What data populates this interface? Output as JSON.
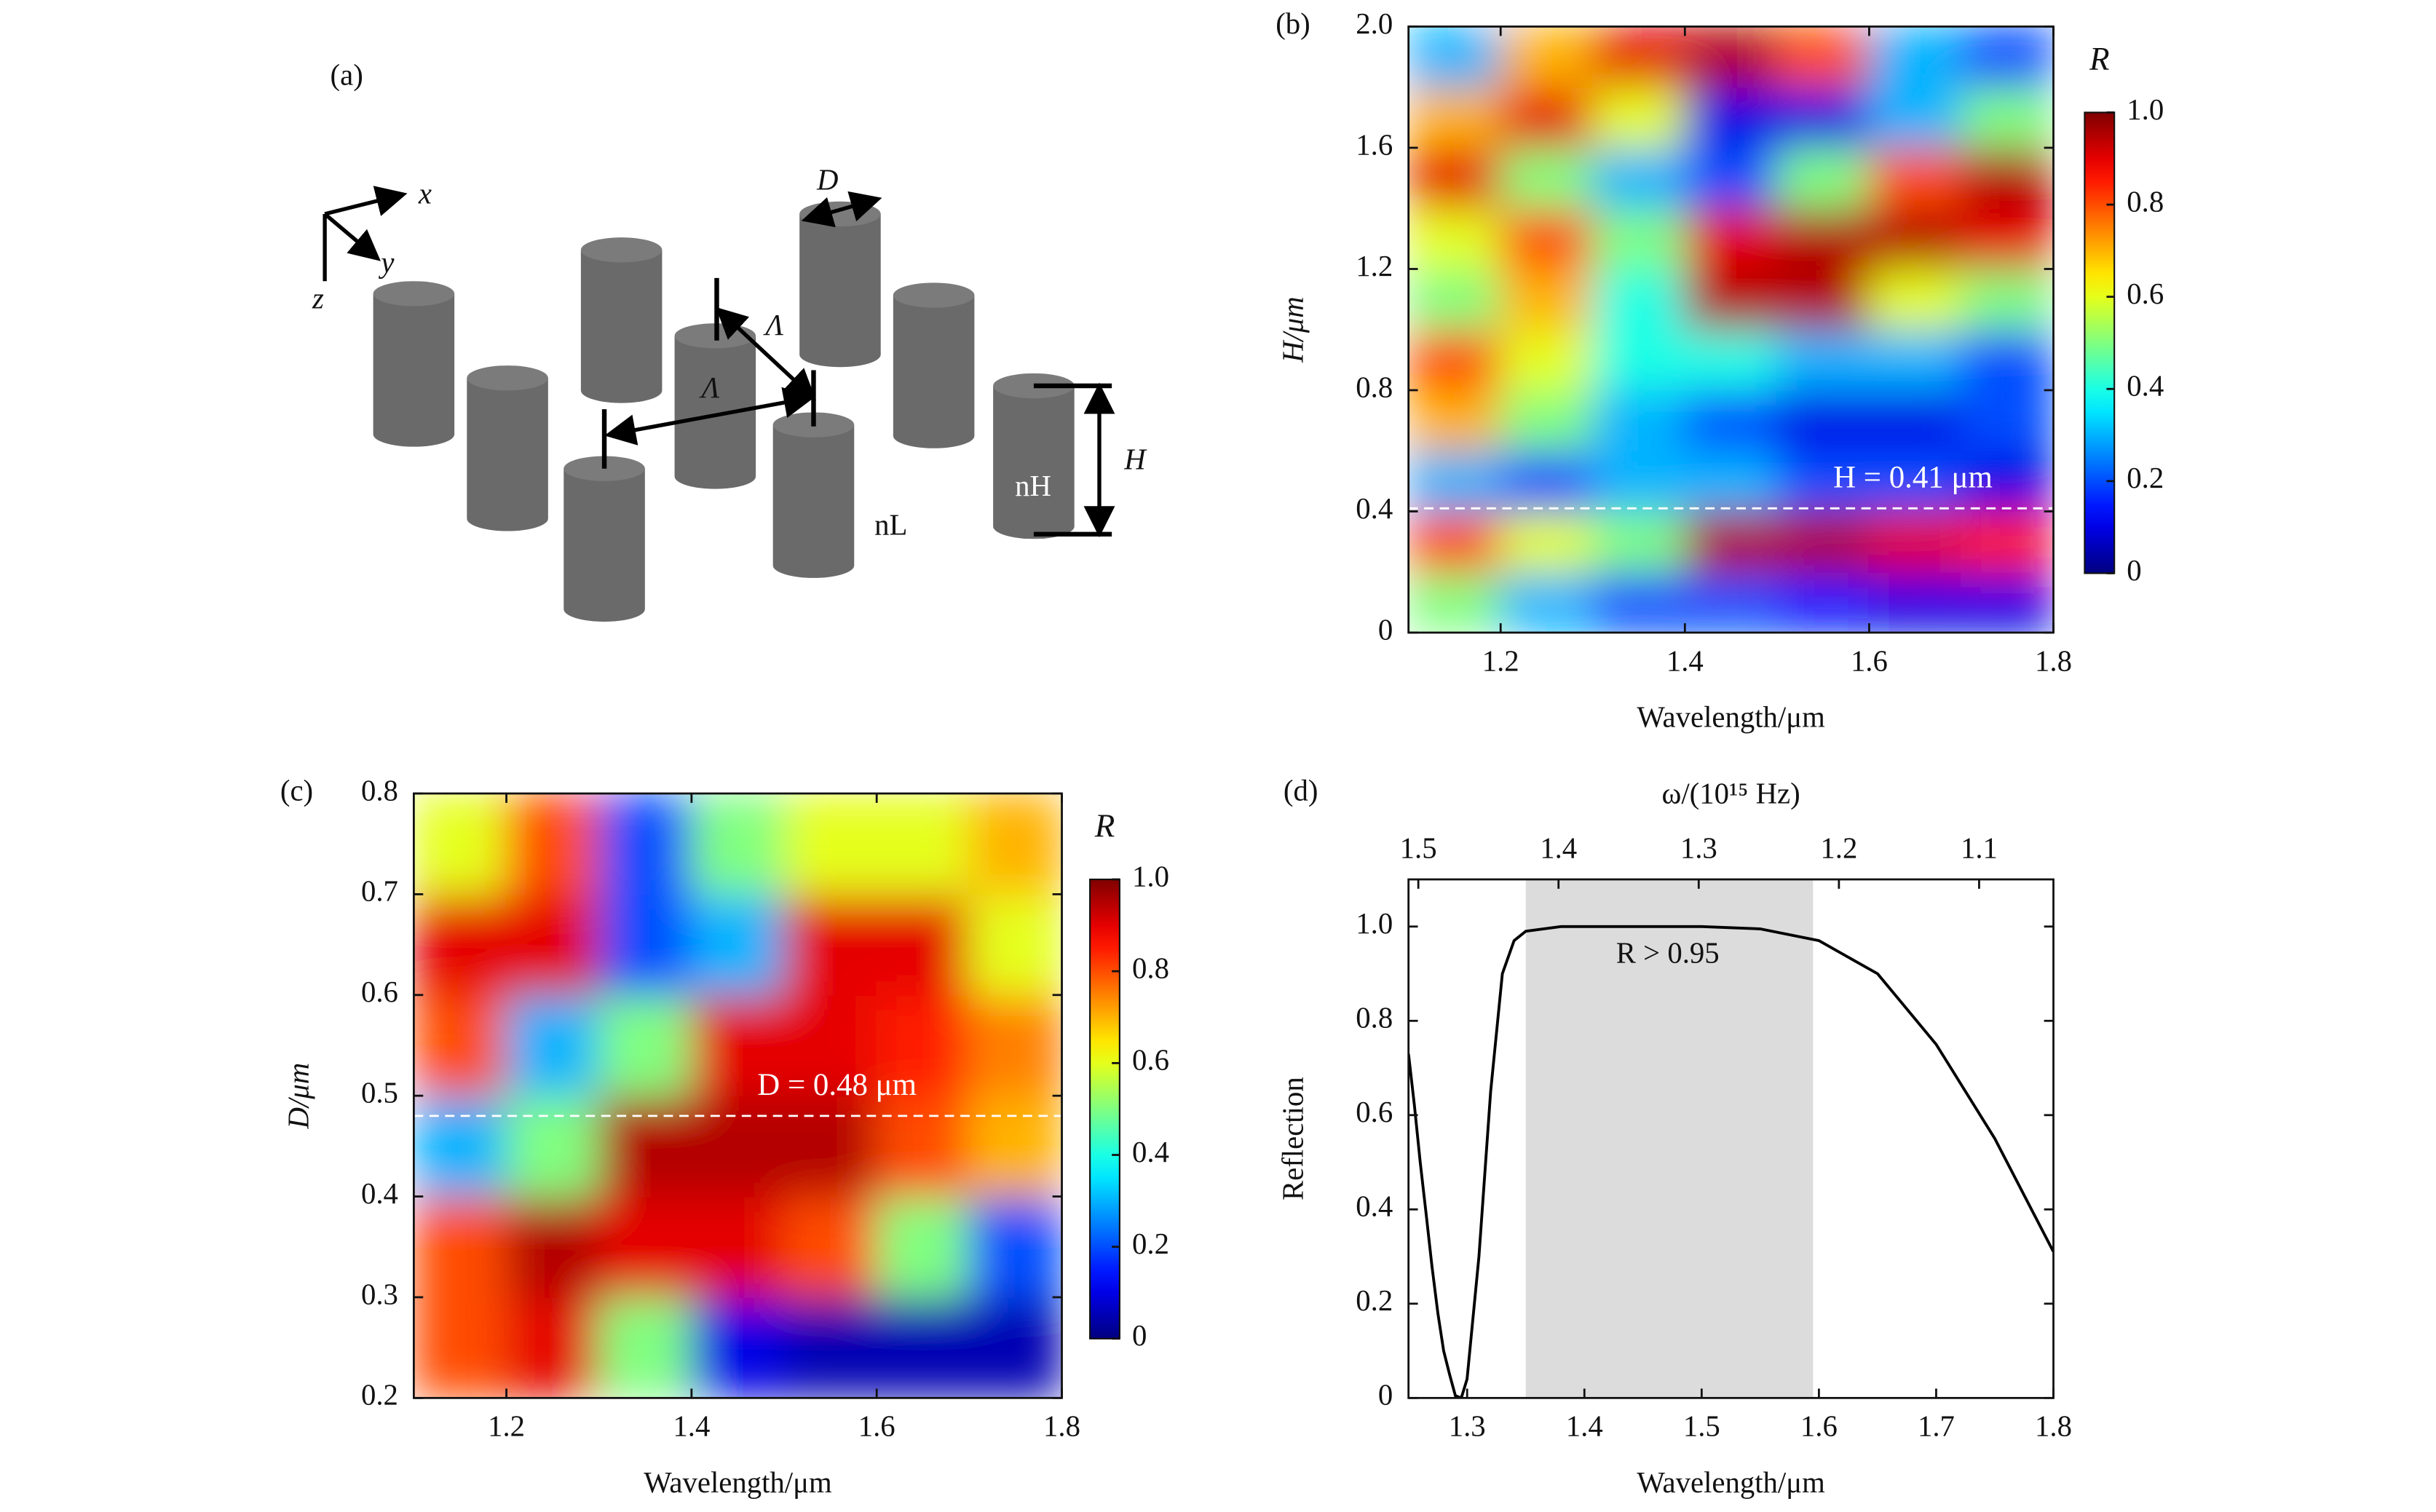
{
  "schematic": {
    "panel": "(a)",
    "axes": [
      "x",
      "y",
      "z"
    ],
    "diameter": "D",
    "period": "Λ",
    "height": "H",
    "n_low": "nL",
    "n_high": "nH"
  },
  "chart_data": [
    {
      "type": "heatmap",
      "panel": "(b)",
      "xlabel": "Wavelength/μm",
      "ylabel": "H/μm",
      "colorbar_label": "R",
      "xlim": [
        1.1,
        1.8
      ],
      "xticks": [
        1.2,
        1.4,
        1.6,
        1.8
      ],
      "ylim": [
        0,
        2
      ],
      "yticks": [
        0,
        0.4,
        0.8,
        1.2,
        1.6,
        {
          "value": 2,
          "label": "2.0"
        }
      ],
      "zlim": [
        0,
        1
      ],
      "zticks": [
        0,
        0.2,
        0.4,
        0.6,
        0.8,
        {
          "value": 1,
          "label": "1.0"
        }
      ],
      "x": [
        1.15,
        1.25,
        1.35,
        1.45,
        1.55,
        1.65,
        1.75
      ],
      "y": [
        0.1,
        0.3,
        0.5,
        0.7,
        0.9,
        1.1,
        1.3,
        1.5,
        1.7,
        1.9
      ],
      "z": [
        [
          0.5,
          0.3,
          0.2,
          0.2,
          0.15,
          0.1,
          0.1
        ],
        [
          0.8,
          0.6,
          0.5,
          0.95,
          0.95,
          0.9,
          0.85
        ],
        [
          0.3,
          0.2,
          0.3,
          0.3,
          0.2,
          0.2,
          0.1
        ],
        [
          0.7,
          0.5,
          0.3,
          0.2,
          0.1,
          0.1,
          0.2
        ],
        [
          0.8,
          0.6,
          0.4,
          0.4,
          0.3,
          0.3,
          0.2
        ],
        [
          0.5,
          0.7,
          0.4,
          0.95,
          0.95,
          0.6,
          0.5
        ],
        [
          0.6,
          0.8,
          0.5,
          0.9,
          0.95,
          0.95,
          0.9
        ],
        [
          0.9,
          0.5,
          0.3,
          0.2,
          0.5,
          0.8,
          0.95
        ],
        [
          0.7,
          0.9,
          0.6,
          0.1,
          0.1,
          0.3,
          0.5
        ],
        [
          0.3,
          0.7,
          0.9,
          0.95,
          0.8,
          0.3,
          0.2
        ]
      ],
      "marker_line": {
        "value": 0.41,
        "label": "H = 0.41 μm"
      }
    },
    {
      "type": "heatmap",
      "panel": "(c)",
      "xlabel": "Wavelength/μm",
      "ylabel": "D/μm",
      "colorbar_label": "R",
      "xlim": [
        1.1,
        1.8
      ],
      "xticks": [
        1.2,
        1.4,
        1.6,
        1.8
      ],
      "ylim": [
        0.2,
        0.8
      ],
      "yticks": [
        0.2,
        0.3,
        0.4,
        0.5,
        0.6,
        0.7,
        0.8
      ],
      "zlim": [
        0,
        1
      ],
      "zticks": [
        0,
        0.2,
        0.4,
        0.6,
        0.8,
        {
          "value": 1,
          "label": "1.0"
        }
      ],
      "x": [
        1.15,
        1.25,
        1.35,
        1.45,
        1.55,
        1.65,
        1.75
      ],
      "y": [
        0.25,
        0.35,
        0.45,
        0.55,
        0.65,
        0.75
      ],
      "z": [
        [
          0.8,
          0.9,
          0.5,
          0.1,
          0.05,
          0.05,
          0.05
        ],
        [
          0.8,
          0.95,
          0.9,
          0.9,
          0.8,
          0.5,
          0.2
        ],
        [
          0.3,
          0.5,
          0.95,
          0.95,
          0.95,
          0.8,
          0.7
        ],
        [
          0.8,
          0.3,
          0.5,
          0.9,
          0.9,
          0.85,
          0.75
        ],
        [
          0.9,
          0.9,
          0.2,
          0.3,
          0.9,
          0.9,
          0.6
        ],
        [
          0.6,
          0.8,
          0.2,
          0.5,
          0.6,
          0.6,
          0.7
        ]
      ],
      "marker_line": {
        "value": 0.48,
        "label": "D = 0.48 μm"
      }
    },
    {
      "type": "line",
      "panel": "(d)",
      "xlabel": "Wavelength/μm",
      "ylabel": "Reflection",
      "x2label": "ω/(10¹⁵ Hz)",
      "xlim": [
        1.25,
        1.8
      ],
      "xticks": [
        1.3,
        1.4,
        1.5,
        1.6,
        1.7,
        1.8
      ],
      "ylim": [
        0,
        1.1
      ],
      "yticks": [
        0,
        0.2,
        0.4,
        0.6,
        0.8,
        {
          "value": 1,
          "label": "1.0"
        }
      ],
      "x2lim": [
        1.507,
        1.047
      ],
      "x2ticks": [
        1.5,
        1.4,
        1.3,
        1.2,
        1.1
      ],
      "x": [
        1.25,
        1.255,
        1.26,
        1.265,
        1.27,
        1.275,
        1.28,
        1.285,
        1.29,
        1.295,
        1.3,
        1.31,
        1.32,
        1.33,
        1.34,
        1.35,
        1.38,
        1.45,
        1.5,
        1.55,
        1.6,
        1.65,
        1.7,
        1.75,
        1.8
      ],
      "values": [
        0.73,
        0.62,
        0.5,
        0.39,
        0.28,
        0.18,
        0.1,
        0.05,
        0.005,
        0,
        0.04,
        0.3,
        0.65,
        0.9,
        0.97,
        0.99,
        1,
        1,
        1,
        0.995,
        0.97,
        0.9,
        0.75,
        0.55,
        0.31
      ],
      "color": "#000000",
      "highlight": {
        "range": [
          1.35,
          1.595
        ],
        "label": "R > 0.95",
        "color": "#dcdcdc"
      }
    }
  ]
}
